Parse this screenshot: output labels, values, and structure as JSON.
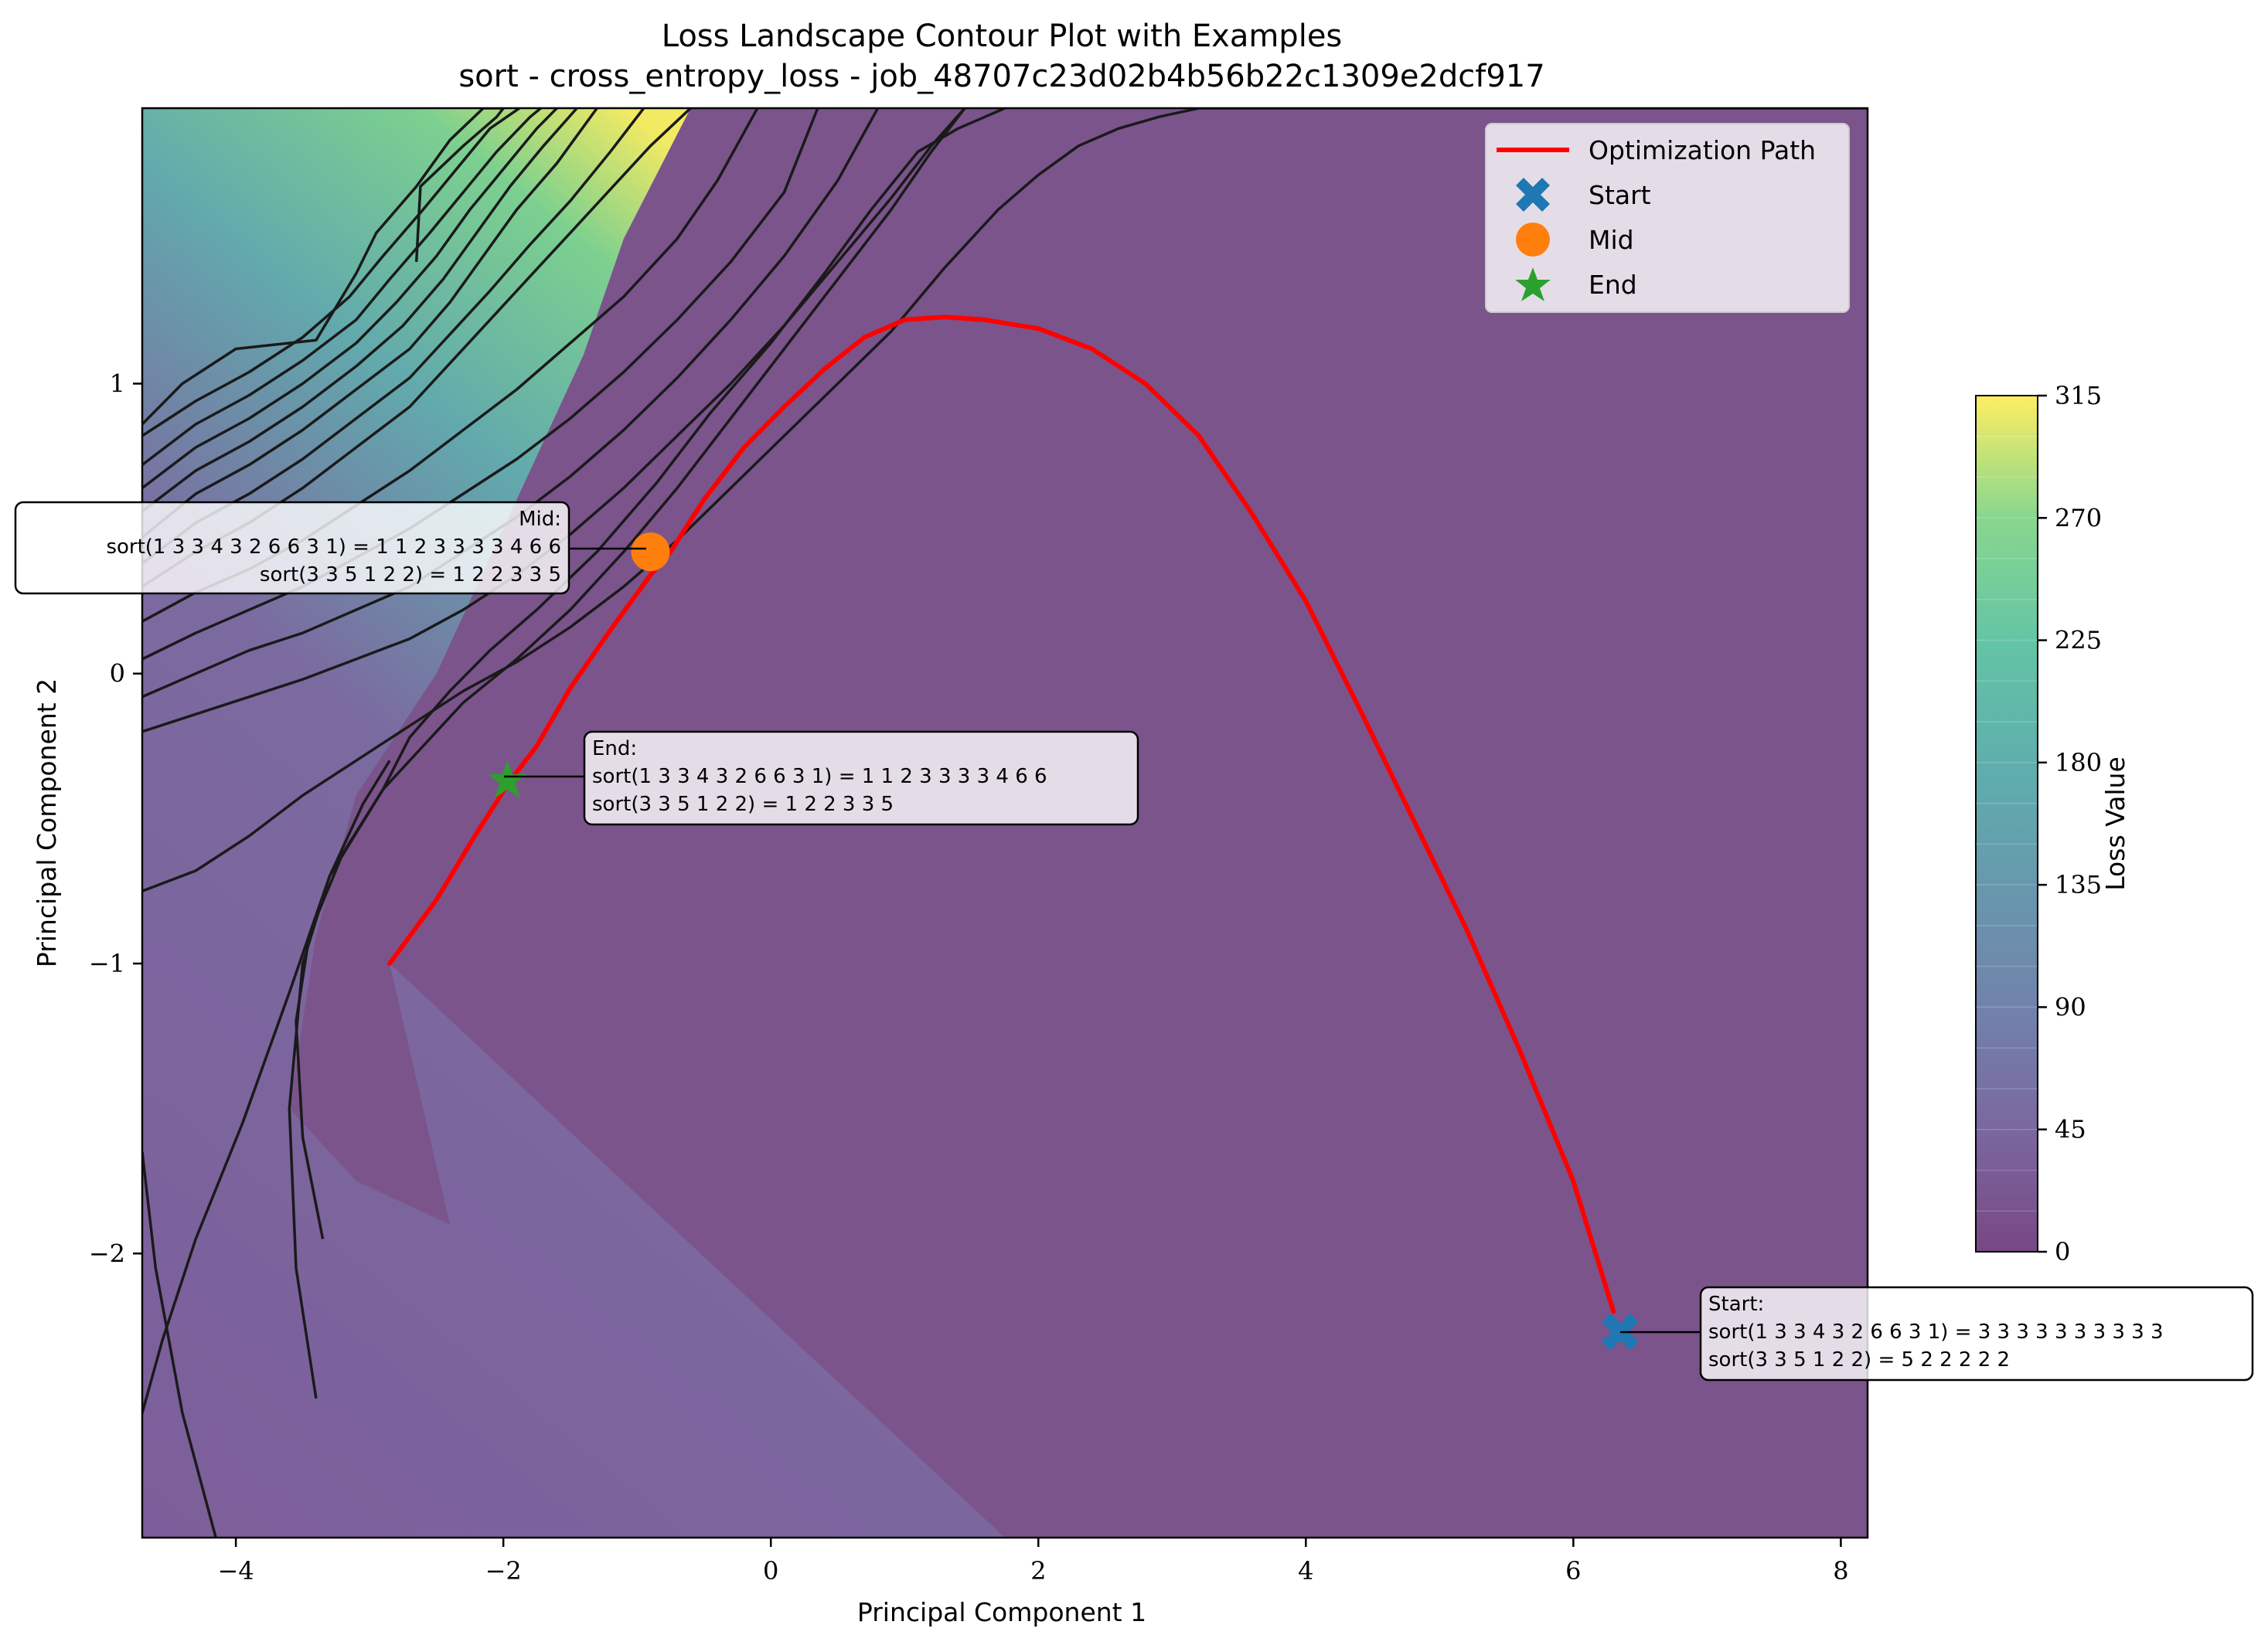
{
  "chart_data": {
    "type": "contour",
    "title": "Loss Landscape Contour Plot with Examples",
    "subtitle": "sort - cross_entropy_loss - job_48707c23d02b4b56b22c1309e2dcf917",
    "xlabel": "Principal Component 1",
    "ylabel": "Principal Component 2",
    "xlim": [
      -4.7,
      8.2
    ],
    "ylim": [
      -2.98,
      1.95
    ],
    "xticks": [
      -4,
      -2,
      0,
      2,
      4,
      6,
      8
    ],
    "yticks": [
      -2,
      -1,
      0,
      1
    ],
    "colorbar": {
      "label": "Loss Value",
      "min": 0,
      "max": 315,
      "ticks": [
        0,
        45,
        90,
        135,
        180,
        225,
        270,
        315
      ],
      "colormap": "viridis"
    },
    "levels": [
      0,
      15,
      30,
      45,
      60,
      75,
      90,
      105,
      120,
      135,
      150,
      165,
      180,
      195,
      210,
      225,
      240,
      255,
      270,
      285,
      300,
      315
    ],
    "optimization_path": {
      "name": "Optimization Path",
      "color": "#ff0000",
      "x": [
        6.3,
        6.0,
        5.6,
        5.2,
        4.8,
        4.4,
        4.0,
        3.6,
        3.2,
        2.8,
        2.4,
        2.0,
        1.6,
        1.3,
        1.0,
        0.7,
        0.4,
        0.1,
        -0.2,
        -0.5,
        -0.75,
        -0.9,
        -1.2,
        -1.5,
        -1.75,
        -1.95,
        -2.2,
        -2.5,
        -2.85
      ],
      "y": [
        -2.2,
        -1.75,
        -1.3,
        -0.88,
        -0.5,
        -0.12,
        0.25,
        0.55,
        0.82,
        1.0,
        1.12,
        1.19,
        1.22,
        1.23,
        1.22,
        1.16,
        1.05,
        0.92,
        0.78,
        0.6,
        0.42,
        0.34,
        0.15,
        -0.05,
        -0.25,
        -0.37,
        -0.55,
        -0.78,
        -1.0
      ]
    },
    "markers": [
      {
        "name": "Start",
        "x": 6.35,
        "y": -2.27,
        "color": "#1f77b4",
        "shape": "x"
      },
      {
        "name": "Mid",
        "x": -0.9,
        "y": 0.42,
        "color": "#ff7f0e",
        "shape": "circle"
      },
      {
        "name": "End",
        "x": -1.97,
        "y": -0.37,
        "color": "#2ca02c",
        "shape": "star"
      }
    ],
    "legend": {
      "placement": "upper right",
      "entries": [
        "Optimization Path",
        "Start",
        "Mid",
        "End"
      ]
    },
    "annotations": {
      "mid": {
        "header": "Mid:",
        "line1": "sort(1 3 3 4 3 2 6 6 3 1) = 1 1 2 3 3 3 3 4 6 6",
        "line2": "sort(3 3 5 1 2 2) = 1 2 2 3 3 5"
      },
      "end": {
        "header": "End:",
        "line1": "sort(1 3 3 4 3 2 6 6 3 1) = 1 1 2 3 3 3 3 4 6 6",
        "line2": "sort(3 3 5 1 2 2) = 1 2 2 3 3 5"
      },
      "start": {
        "header": "Start:",
        "line1": "sort(1 3 3 4 3 2 6 6 3 1) = 3 3 3 3 3 3 3 3 3 3",
        "line2": "sort(3 3 5 1 2 2) = 5 2 2 2 2 2"
      }
    },
    "contour_lines": [
      {
        "x": [
          -4.7,
          -4.3,
          -3.9,
          -3.5,
          -3.1,
          -2.7,
          -2.4,
          -2.1,
          -1.8,
          -1.5,
          -1.2,
          -0.9,
          -0.6
        ],
        "y": [
          0.3,
          0.42,
          0.52,
          0.64,
          0.78,
          0.92,
          1.07,
          1.22,
          1.37,
          1.52,
          1.67,
          1.82,
          1.95
        ]
      },
      {
        "x": [
          -4.7,
          -4.3,
          -3.9,
          -3.5,
          -3.1,
          -2.7,
          -2.4,
          -2.1,
          -1.8,
          -1.5,
          -1.2,
          -0.95
        ],
        "y": [
          0.38,
          0.52,
          0.62,
          0.74,
          0.88,
          1.02,
          1.17,
          1.32,
          1.48,
          1.63,
          1.8,
          1.95
        ]
      },
      {
        "x": [
          -4.7,
          -4.3,
          -3.9,
          -3.5,
          -3.1,
          -2.7,
          -2.4,
          -2.15,
          -1.9,
          -1.6,
          -1.3
        ],
        "y": [
          0.47,
          0.62,
          0.72,
          0.84,
          0.98,
          1.12,
          1.28,
          1.44,
          1.6,
          1.76,
          1.95
        ]
      },
      {
        "x": [
          -4.7,
          -4.3,
          -3.9,
          -3.5,
          -3.1,
          -2.75,
          -2.45,
          -2.2,
          -1.95,
          -1.7,
          -1.45
        ],
        "y": [
          0.56,
          0.7,
          0.8,
          0.92,
          1.06,
          1.2,
          1.36,
          1.52,
          1.68,
          1.82,
          1.95
        ]
      },
      {
        "x": [
          -4.7,
          -4.3,
          -3.9,
          -3.5,
          -3.1,
          -2.8,
          -2.5,
          -2.25,
          -2.0,
          -1.75,
          -1.6
        ],
        "y": [
          0.64,
          0.78,
          0.88,
          1.0,
          1.14,
          1.28,
          1.44,
          1.6,
          1.74,
          1.88,
          1.95
        ]
      },
      {
        "x": [
          -4.7,
          -4.3,
          -3.9,
          -3.5,
          -3.1,
          -2.85,
          -2.55,
          -2.3,
          -2.05,
          -1.8,
          -1.72
        ],
        "y": [
          0.72,
          0.86,
          0.96,
          1.08,
          1.22,
          1.36,
          1.52,
          1.66,
          1.8,
          1.92,
          1.95
        ]
      },
      {
        "x": [
          -4.7,
          -4.3,
          -3.9,
          -3.5,
          -3.15,
          -2.9,
          -2.6,
          -2.35,
          -2.1,
          -1.88
        ],
        "y": [
          0.82,
          0.94,
          1.04,
          1.16,
          1.3,
          1.44,
          1.6,
          1.74,
          1.88,
          1.95
        ]
      },
      {
        "x": [
          -4.7,
          -4.4,
          -4.0,
          -3.4,
          -3.1,
          -2.95,
          -2.65,
          -2.4,
          -2.15,
          -2.0
        ],
        "y": [
          0.86,
          1.0,
          1.12,
          1.15,
          1.38,
          1.52,
          1.68,
          1.84,
          1.95,
          1.95
        ]
      },
      {
        "x": [
          -2.65,
          -2.62,
          -2.3,
          -2.05,
          -2.0
        ],
        "y": [
          1.42,
          1.68,
          1.82,
          1.92,
          1.95
        ]
      },
      {
        "x": [
          -4.7,
          -4.3,
          -3.9,
          -3.5,
          -3.1,
          -2.7,
          -2.3,
          -1.9,
          -1.5,
          -1.1,
          -0.7,
          -0.4,
          -0.1
        ],
        "y": [
          0.18,
          0.28,
          0.36,
          0.46,
          0.58,
          0.7,
          0.84,
          0.98,
          1.14,
          1.3,
          1.5,
          1.7,
          1.95
        ]
      },
      {
        "x": [
          -4.7,
          -4.3,
          -3.9,
          -3.5,
          -3.1,
          -2.7,
          -2.3,
          -1.9,
          -1.5,
          -1.1,
          -0.7,
          -0.3,
          0.1,
          0.35
        ],
        "y": [
          0.05,
          0.14,
          0.22,
          0.3,
          0.4,
          0.5,
          0.62,
          0.74,
          0.88,
          1.04,
          1.22,
          1.42,
          1.66,
          1.95
        ]
      },
      {
        "x": [
          -4.7,
          -4.3,
          -3.9,
          -3.5,
          -3.1,
          -2.7,
          -2.3,
          -1.9,
          -1.5,
          -1.1,
          -0.7,
          -0.3,
          0.1,
          0.5,
          0.8
        ],
        "y": [
          -0.08,
          0.0,
          0.08,
          0.14,
          0.22,
          0.3,
          0.42,
          0.54,
          0.68,
          0.84,
          1.02,
          1.22,
          1.44,
          1.7,
          1.95
        ]
      },
      {
        "x": [
          -4.7,
          -4.3,
          -3.9,
          -3.5,
          -3.1,
          -2.7,
          -2.3,
          -1.9,
          -1.5,
          -1.1,
          -0.7,
          -0.3,
          0.1,
          0.5,
          0.9,
          1.2,
          1.45
        ],
        "y": [
          -0.2,
          -0.14,
          -0.08,
          -0.02,
          0.05,
          0.12,
          0.22,
          0.34,
          0.48,
          0.64,
          0.82,
          1.0,
          1.2,
          1.42,
          1.64,
          1.82,
          1.95
        ]
      },
      {
        "x": [
          -4.7,
          -4.3,
          -3.9,
          -3.5,
          -3.1,
          -2.7,
          -2.3,
          -1.9,
          -1.5,
          -1.1,
          -0.7,
          -0.3,
          0.1,
          0.5,
          0.9,
          1.3,
          1.7,
          2.0,
          2.3,
          2.6,
          2.9,
          3.2,
          3.5,
          3.8,
          4.1,
          4.4,
          4.7,
          5.0,
          5.3,
          5.6,
          5.9,
          6.2,
          6.5,
          6.8,
          7.1,
          7.4,
          7.7,
          8.0,
          8.2
        ],
        "y": [
          -0.75,
          -0.68,
          -0.56,
          -0.42,
          -0.3,
          -0.18,
          -0.06,
          0.04,
          0.16,
          0.3,
          0.46,
          0.64,
          0.82,
          1.0,
          1.18,
          1.4,
          1.6,
          1.72,
          1.82,
          1.88,
          1.92,
          1.95,
          1.95,
          1.95,
          1.95,
          1.95,
          1.95,
          1.95,
          1.95,
          1.95,
          1.95,
          1.95,
          1.95,
          1.95,
          1.95,
          1.95,
          1.95,
          1.95,
          1.95
        ]
      },
      {
        "x": [
          -3.4,
          -3.55,
          -3.6,
          -3.5,
          -3.3,
          -3.1,
          -2.9,
          -2.6,
          -2.3,
          -1.9,
          -1.5,
          -1.1,
          -0.7,
          -0.3,
          0.1,
          0.5,
          0.9,
          1.2,
          1.45
        ],
        "y": [
          -2.5,
          -2.05,
          -1.5,
          -1.0,
          -0.7,
          -0.55,
          -0.4,
          -0.25,
          -0.1,
          0.05,
          0.22,
          0.42,
          0.64,
          0.88,
          1.12,
          1.36,
          1.6,
          1.8,
          1.95
        ]
      },
      {
        "x": [
          -3.35,
          -3.5,
          -3.55,
          -3.45,
          -3.2,
          -2.9,
          -2.7,
          -2.4,
          -2.1,
          -1.75,
          -1.3,
          -0.85,
          -0.45,
          0.0,
          0.4,
          0.75,
          1.1,
          1.4,
          1.6,
          1.75
        ],
        "y": [
          -1.95,
          -1.6,
          -1.2,
          -0.9,
          -0.62,
          -0.4,
          -0.22,
          -0.06,
          0.08,
          0.22,
          0.42,
          0.66,
          0.9,
          1.14,
          1.38,
          1.6,
          1.8,
          1.88,
          1.92,
          1.95
        ]
      },
      {
        "x": [
          -4.15,
          -4.4,
          -4.6,
          -4.7
        ],
        "y": [
          -2.98,
          -2.55,
          -2.05,
          -1.65
        ]
      },
      {
        "x": [
          -4.7,
          -4.55,
          -4.3,
          -3.95,
          -3.6,
          -3.3,
          -3.05,
          -2.85
        ],
        "y": [
          -2.55,
          -2.3,
          -1.95,
          -1.55,
          -1.1,
          -0.7,
          -0.45,
          -0.3
        ]
      }
    ],
    "contour_regions": [
      {
        "level": 0,
        "x": [
          -2.85,
          1.75,
          8.2,
          8.2,
          -0.6,
          -1.1,
          -1.4,
          -2.0,
          -2.5,
          -3.1,
          -3.4,
          -3.6,
          -3.1,
          -2.4
        ],
        "y": [
          -1.0,
          -2.98,
          -2.98,
          1.95,
          1.95,
          1.5,
          1.1,
          0.5,
          0.0,
          -0.42,
          -0.9,
          -1.5,
          -1.75,
          -1.9
        ]
      }
    ]
  }
}
